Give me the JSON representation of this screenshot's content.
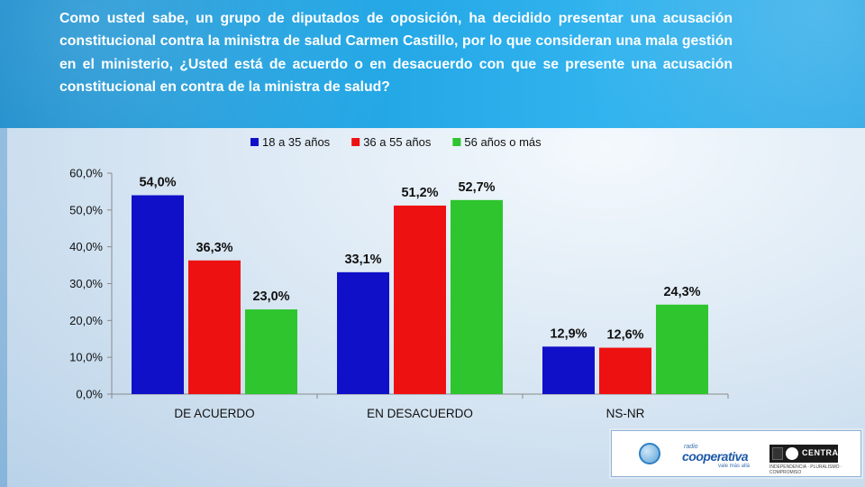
{
  "question": "Como usted sabe, un grupo de diputados de oposición, ha decidido presentar una acusación constitucional contra la ministra de salud  Carmen Castillo, por lo que consideran una mala gestión en el ministerio, ¿Usted está de acuerdo o en desacuerdo con que se presente una acusación constitucional en contra de la ministra de salud?",
  "logos": {
    "cooperativa_small": "radio",
    "cooperativa": "cooperativa",
    "cooperativa_tag": "vale más allá",
    "universidad": "CENTRAL",
    "universidad_tag": "INDEPENDENCIA · PLURALISMO · COMPROMISO"
  },
  "chart_data": {
    "type": "bar",
    "categories": [
      "DE ACUERDO",
      "EN DESACUERDO",
      "NS-NR"
    ],
    "series": [
      {
        "name": "18 a 35 años",
        "color": "#1010c8",
        "values": [
          54.0,
          33.1,
          12.9
        ],
        "labels": [
          "54,0%",
          "33,1%",
          "12,9%"
        ]
      },
      {
        "name": "36 a 55 años",
        "color": "#ee1111",
        "values": [
          36.3,
          51.2,
          12.6
        ],
        "labels": [
          "36,3%",
          "51,2%",
          "12,6%"
        ]
      },
      {
        "name": "56 años o más",
        "color": "#2ec52e",
        "values": [
          23.0,
          52.7,
          24.3
        ],
        "labels": [
          "23,0%",
          "52,7%",
          "24,3%"
        ]
      }
    ],
    "yticks": [
      "0,0%",
      "10,0%",
      "20,0%",
      "30,0%",
      "40,0%",
      "50,0%",
      "60,0%"
    ],
    "ylim": [
      0,
      60
    ],
    "legend_position": "top",
    "grid": false
  }
}
